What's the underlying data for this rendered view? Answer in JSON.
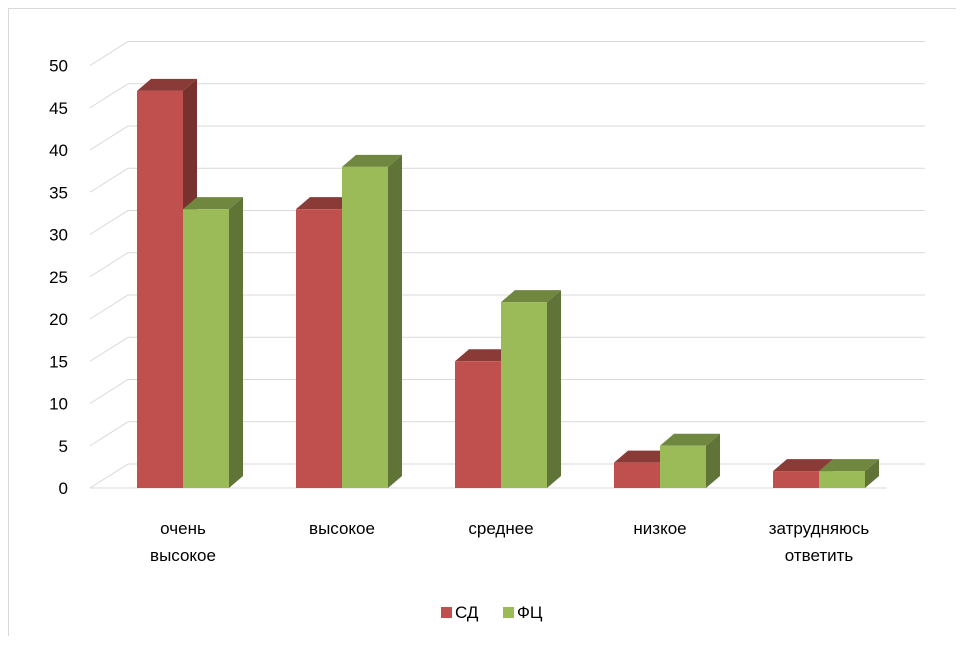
{
  "chart_data": {
    "type": "bar",
    "title": "",
    "xlabel": "",
    "ylabel": "",
    "ylim": [
      0,
      50
    ],
    "yticks": [
      "0",
      "5",
      "10",
      "15",
      "20",
      "25",
      "30",
      "35",
      "40",
      "45",
      "50"
    ],
    "categories": [
      [
        "очень",
        "высокое"
      ],
      [
        "высокое"
      ],
      [
        "среднее"
      ],
      [
        "низкое"
      ],
      [
        "затрудняюсь",
        "ответить"
      ]
    ],
    "series": [
      {
        "name": "СД",
        "color": "#c0504d",
        "values": [
          47,
          33,
          15,
          3,
          2
        ]
      },
      {
        "name": "ФЦ",
        "color": "#9bbb59",
        "values": [
          33,
          38,
          22,
          5,
          2
        ]
      }
    ],
    "grid": true,
    "legend_position": "bottom",
    "style": "3d-column"
  }
}
